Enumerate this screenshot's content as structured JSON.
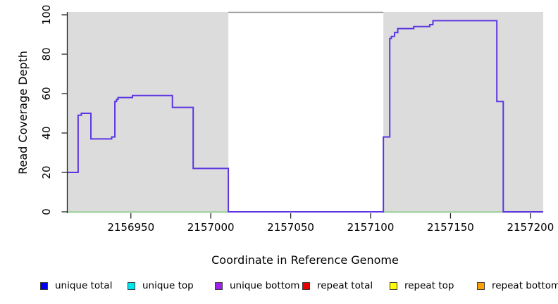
{
  "page": {
    "background": "#ffffff"
  },
  "chart_data": {
    "type": "line",
    "subtype": "step-after",
    "title": "",
    "xlabel": "Coordinate in Reference Genome",
    "ylabel": "Read Coverage Depth",
    "xlim": [
      2156910,
      2157208
    ],
    "ylim": [
      0,
      100
    ],
    "grid": false,
    "x_tick_values": [
      2156950,
      2157000,
      2157050,
      2157100,
      2157150,
      2157200
    ],
    "x_tick_labels": [
      "2156950",
      "2157000",
      "2157050",
      "2157100",
      "2157150",
      "2157200"
    ],
    "y_tick_values": [
      0,
      20,
      40,
      60,
      80,
      100
    ],
    "y_tick_labels": [
      "0",
      "20",
      "40",
      "60",
      "80",
      "100"
    ],
    "shaded_regions": [
      {
        "x0": 2156910,
        "x1": 2157011,
        "color": "#dcdcdc"
      },
      {
        "x0": 2157108,
        "x1": 2157208,
        "color": "#dcdcdc"
      }
    ],
    "gap_top_border_color": "#8c8c8c",
    "baseline_series": {
      "name": "zero-baseline",
      "y": 0,
      "color": "#8fd48f"
    },
    "series": [
      {
        "name": "read-coverage-step",
        "color": "#5c36e2",
        "points": [
          [
            2156910,
            20
          ],
          [
            2156917,
            49
          ],
          [
            2156919,
            50
          ],
          [
            2156925,
            37
          ],
          [
            2156938,
            38
          ],
          [
            2156940,
            56
          ],
          [
            2156941,
            57
          ],
          [
            2156942,
            58
          ],
          [
            2156951,
            59
          ],
          [
            2156976,
            53
          ],
          [
            2156989,
            22
          ],
          [
            2157011,
            0
          ],
          [
            2157108,
            38
          ],
          [
            2157112,
            88
          ],
          [
            2157113,
            89
          ],
          [
            2157115,
            91
          ],
          [
            2157117,
            93
          ],
          [
            2157127,
            94
          ],
          [
            2157137,
            95
          ],
          [
            2157139,
            97
          ],
          [
            2157179,
            56
          ],
          [
            2157183,
            0
          ],
          [
            2157208,
            0
          ]
        ]
      }
    ]
  },
  "legend": {
    "items": [
      {
        "label": "unique total",
        "color": "#0000ee"
      },
      {
        "label": "unique top",
        "color": "#00e5ee"
      },
      {
        "label": "unique bottom",
        "color": "#a020f0"
      },
      {
        "label": "repeat total",
        "color": "#e80000"
      },
      {
        "label": "repeat top",
        "color": "#ffff00"
      },
      {
        "label": "repeat bottom",
        "color": "#ffa000"
      }
    ]
  }
}
